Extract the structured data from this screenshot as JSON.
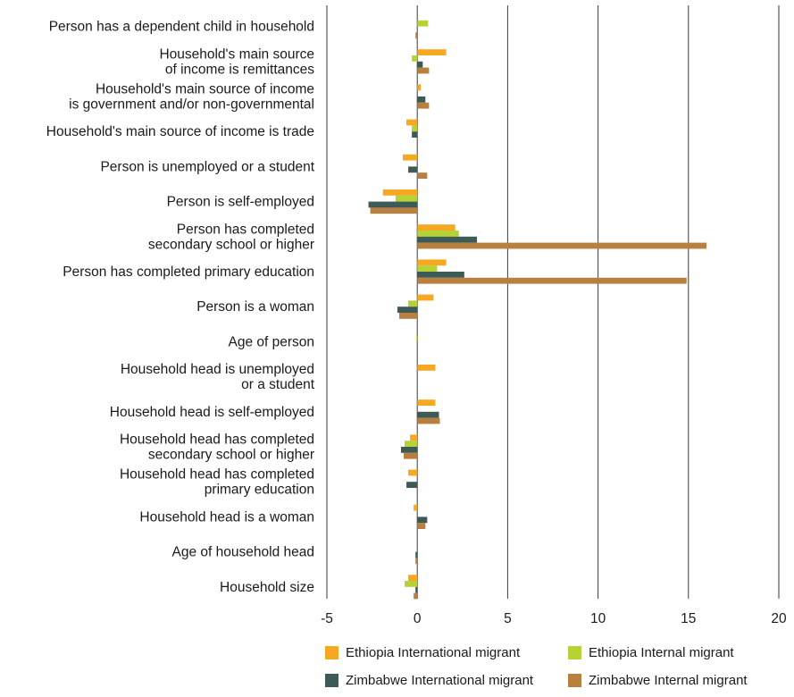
{
  "chart_data": {
    "type": "bar",
    "orientation": "horizontal",
    "title": "",
    "xlabel": "",
    "ylabel": "",
    "xlim": [
      -5,
      20
    ],
    "xticks": [
      "-5",
      "0",
      "5",
      "10",
      "15",
      "20"
    ],
    "grid": "vertical lines at each tick",
    "legend_position": "bottom",
    "categories": [
      "Person has a dependent child in household",
      "Household's main source\nof income is remittances",
      "Household's main source of income\nis government and/or non-governmental",
      "Household's main source of income is trade",
      "Person is unemployed or a student",
      "Person is self-employed",
      "Person has completed\nsecondary school or higher",
      "Person has completed primary education",
      "Person is a woman",
      "Age of person",
      "Household head is unemployed\nor a student",
      "Household head is self-employed",
      "Household head has completed\nsecondary school or higher",
      "Household head has completed\nprimary education",
      "Household head is a woman",
      "Age of household head",
      "Household size"
    ],
    "series": [
      {
        "name": "Ethiopia International migrant",
        "color": "#f7a823",
        "values": [
          0,
          1.6,
          0.2,
          -0.6,
          -0.8,
          -1.9,
          2.1,
          1.6,
          0.9,
          0,
          1.0,
          1.0,
          -0.4,
          -0.5,
          -0.2,
          0,
          -0.5
        ]
      },
      {
        "name": "Ethiopia Internal migrant",
        "color": "#b5d334",
        "values": [
          0.6,
          -0.3,
          0,
          -0.3,
          0,
          -1.2,
          2.3,
          1.1,
          -0.5,
          -0.05,
          0,
          0,
          -0.7,
          0,
          0,
          0,
          -0.7
        ]
      },
      {
        "name": "Zimbabwe International migrant",
        "color": "#3d5a57",
        "values": [
          0,
          0.3,
          0.45,
          -0.3,
          -0.5,
          -2.7,
          3.3,
          2.6,
          -1.1,
          0,
          0,
          1.2,
          -0.9,
          -0.6,
          0.55,
          -0.1,
          -0.1
        ]
      },
      {
        "name": "Zimbabwe Internal migrant",
        "color": "#b87f3e",
        "values": [
          -0.1,
          0.65,
          0.65,
          0,
          0.55,
          -2.6,
          16.0,
          14.9,
          -1.0,
          0,
          0,
          1.25,
          -0.75,
          0,
          0.45,
          -0.1,
          -0.2
        ]
      }
    ]
  }
}
